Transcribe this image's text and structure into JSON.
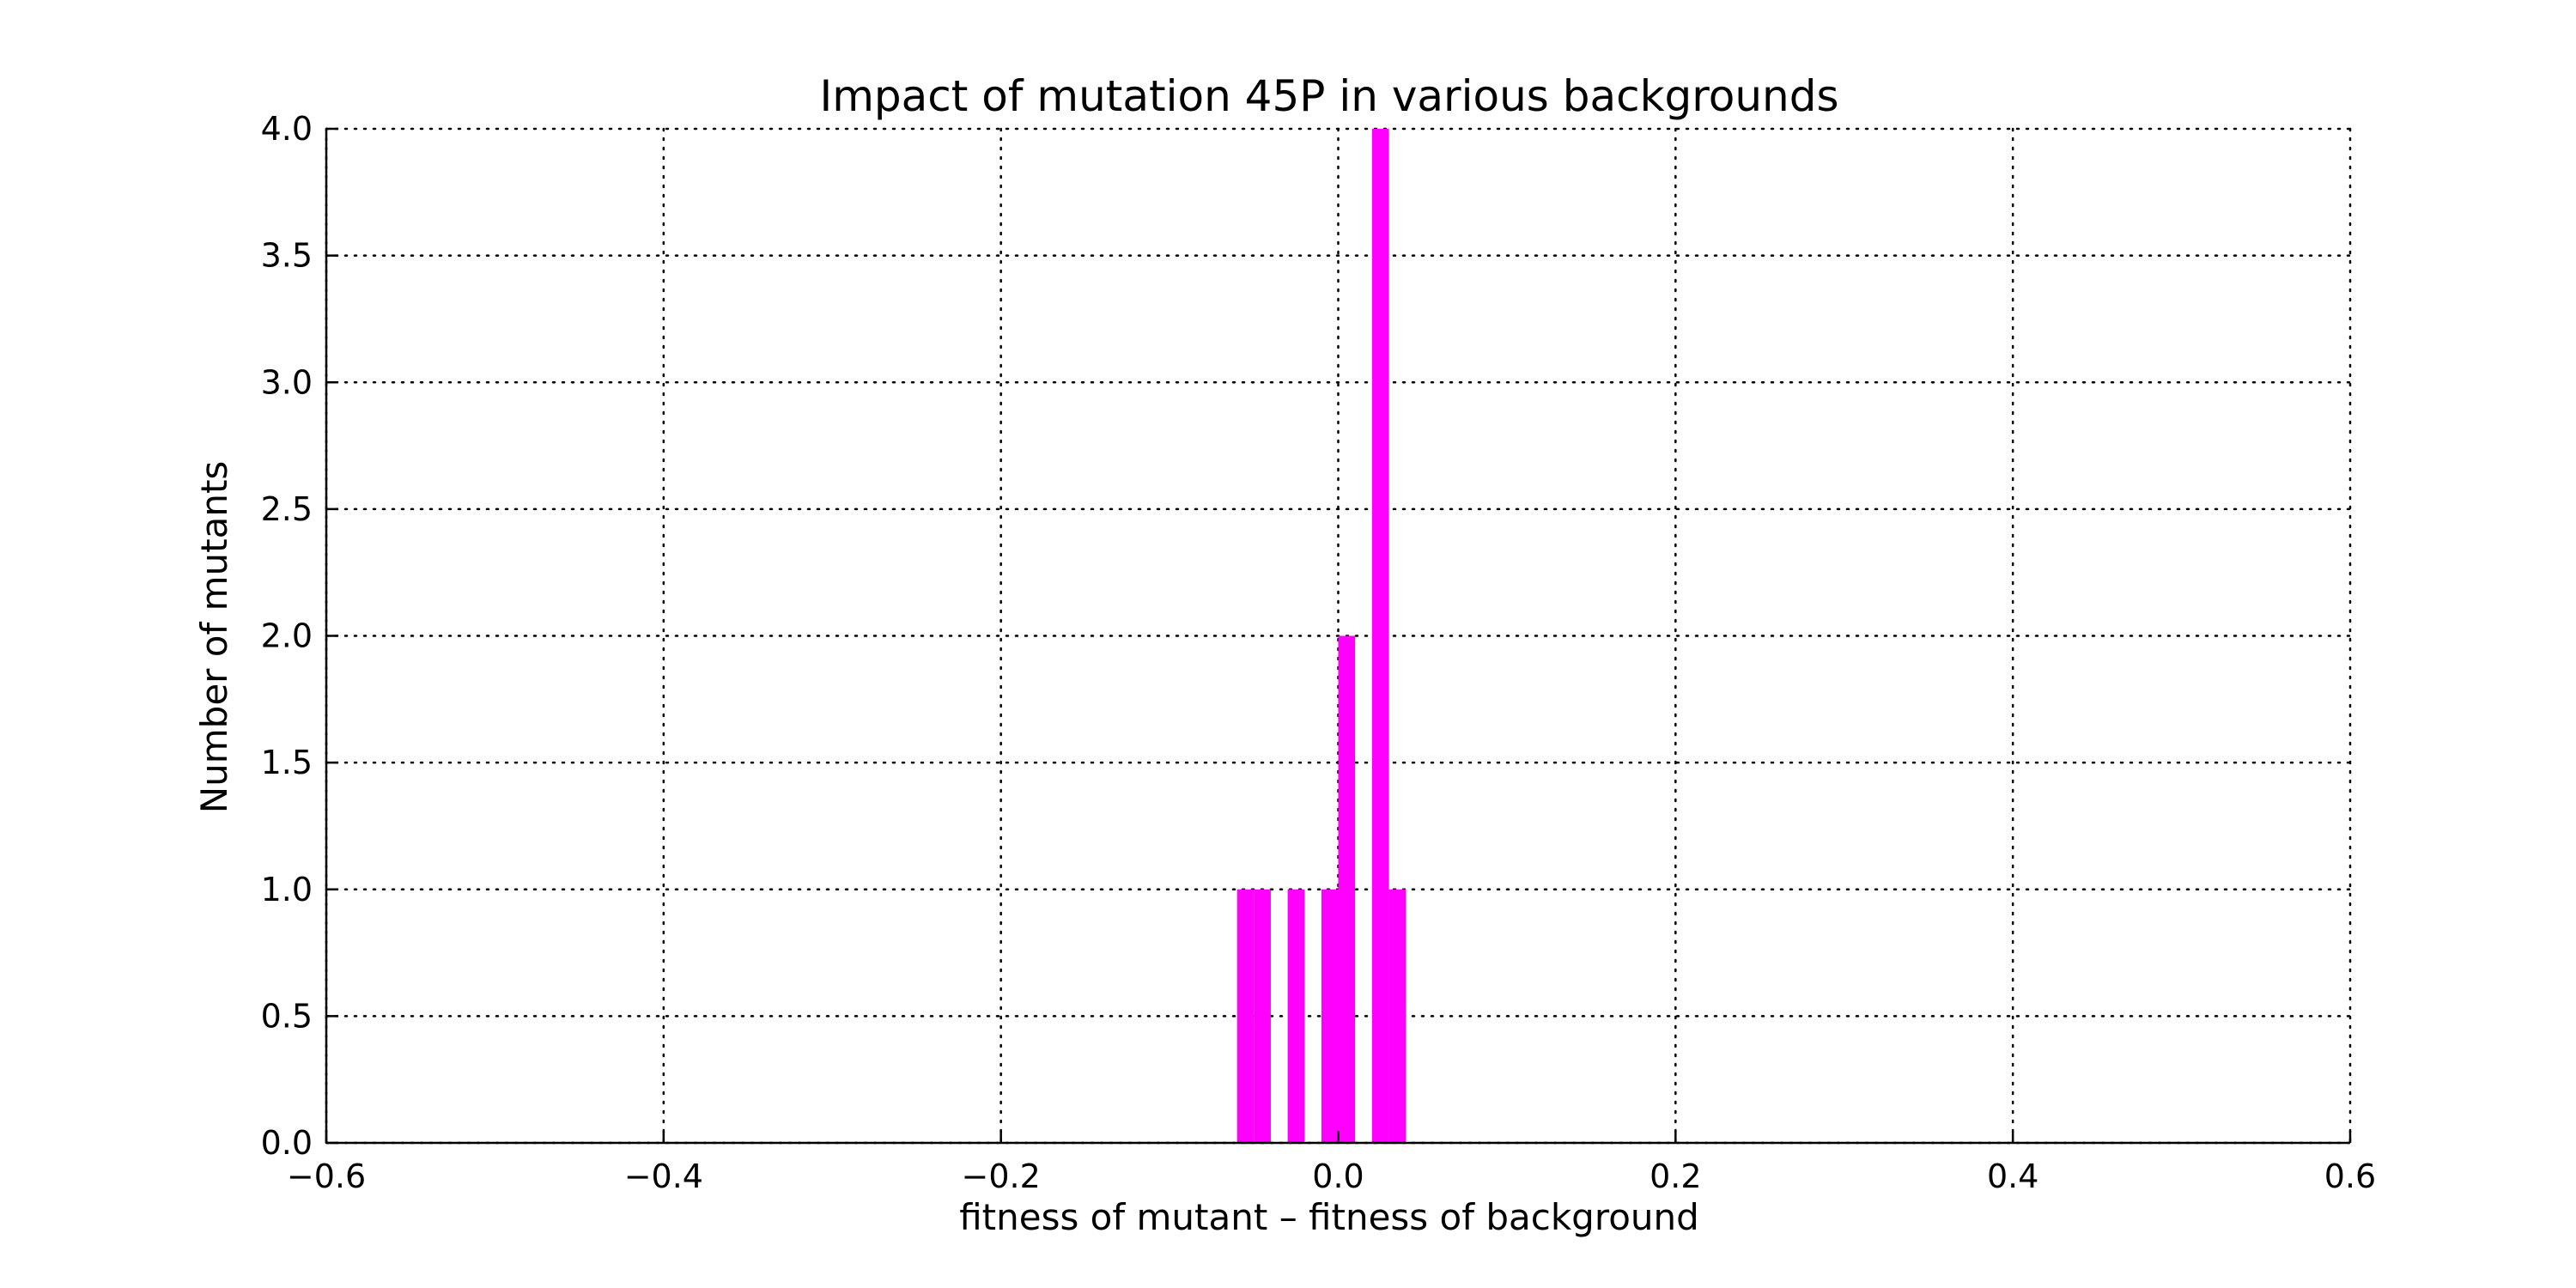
{
  "chart_data": {
    "type": "bar",
    "title": "Impact of mutation 45P in various backgrounds",
    "xlabel": "fitness of mutant  –  fitness of background",
    "ylabel": "Number of mutants",
    "xlim": [
      -0.6,
      0.6
    ],
    "ylim": [
      0,
      4.0
    ],
    "grid": true,
    "bar_color": "#ff00ff",
    "x_ticks": [
      {
        "value": -0.6,
        "label": "−0.6"
      },
      {
        "value": -0.4,
        "label": "−0.4"
      },
      {
        "value": -0.2,
        "label": "−0.2"
      },
      {
        "value": 0.0,
        "label": "0.0"
      },
      {
        "value": 0.2,
        "label": "0.2"
      },
      {
        "value": 0.4,
        "label": "0.4"
      },
      {
        "value": 0.6,
        "label": "0.6"
      }
    ],
    "y_ticks": [
      {
        "value": 0.0,
        "label": "0.0"
      },
      {
        "value": 0.5,
        "label": "0.5"
      },
      {
        "value": 1.0,
        "label": "1.0"
      },
      {
        "value": 1.5,
        "label": "1.5"
      },
      {
        "value": 2.0,
        "label": "2.0"
      },
      {
        "value": 2.5,
        "label": "2.5"
      },
      {
        "value": 3.0,
        "label": "3.0"
      },
      {
        "value": 3.5,
        "label": "3.5"
      },
      {
        "value": 4.0,
        "label": "4.0"
      }
    ],
    "bins": [
      {
        "x0": -0.06,
        "x1": -0.05,
        "count": 1
      },
      {
        "x0": -0.05,
        "x1": -0.04,
        "count": 1
      },
      {
        "x0": -0.03,
        "x1": -0.02,
        "count": 1
      },
      {
        "x0": -0.01,
        "x1": 0.0,
        "count": 1
      },
      {
        "x0": 0.0,
        "x1": 0.01,
        "count": 2
      },
      {
        "x0": 0.02,
        "x1": 0.03,
        "count": 4
      },
      {
        "x0": 0.03,
        "x1": 0.04,
        "count": 1
      }
    ]
  }
}
